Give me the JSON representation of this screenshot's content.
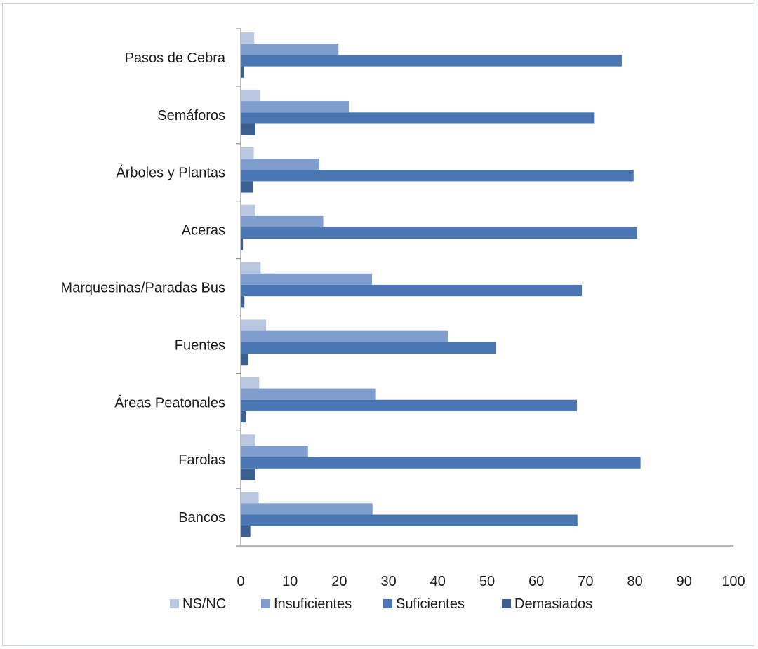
{
  "chart_data": {
    "type": "bar",
    "orientation": "horizontal",
    "title": "",
    "xlabel": "",
    "ylabel": "",
    "xlim": [
      0,
      100
    ],
    "x_ticks": [
      "0",
      "10",
      "20",
      "30",
      "40",
      "50",
      "60",
      "70",
      "80",
      "90",
      "100"
    ],
    "grid": false,
    "legend_position": "bottom",
    "categories": [
      "Pasos de Cebra",
      "Semáforos",
      "Árboles y Plantas",
      "Aceras",
      "Marquesinas/Paradas Bus",
      "Fuentes",
      "Áreas Peatonales",
      "Farolas",
      "Bancos"
    ],
    "series": [
      {
        "name": "NS/NC",
        "color": "#b9c7e1",
        "values": [
          2.6,
          3.7,
          2.5,
          2.8,
          3.9,
          5.0,
          3.6,
          2.8,
          3.5
        ]
      },
      {
        "name": "Insuficientes",
        "color": "#7f9dcd",
        "values": [
          19.7,
          21.8,
          15.8,
          16.6,
          26.5,
          41.9,
          27.3,
          13.5,
          26.6
        ]
      },
      {
        "name": "Suficientes",
        "color": "#4a77b4",
        "values": [
          77.2,
          71.7,
          79.6,
          80.3,
          69.1,
          51.6,
          68.1,
          81.0,
          68.2
        ]
      },
      {
        "name": "Demasiados",
        "color": "#3a5f91",
        "values": [
          0.5,
          2.8,
          2.3,
          0.3,
          0.6,
          1.3,
          0.9,
          2.8,
          1.8
        ]
      }
    ]
  }
}
